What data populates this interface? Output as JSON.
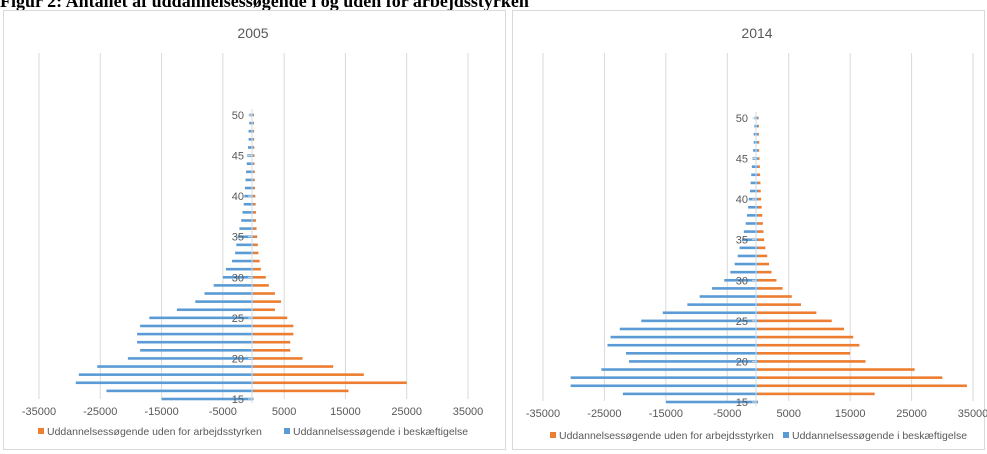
{
  "figure_title": "Figur 2: Antallet af uddannelsessøgende i og uden for arbejdsstyrken",
  "colors": {
    "in_work": "#5b9bd5",
    "out_of_work": "#ed7d31",
    "grid": "#d9d9d9",
    "text": "#595959"
  },
  "chart_data": [
    {
      "type": "bar",
      "orientation": "horizontal",
      "title": "2005",
      "y_ticks": [
        15,
        20,
        25,
        30,
        35,
        40,
        45,
        50
      ],
      "x_ticks": [
        -35000,
        -25000,
        -15000,
        -5000,
        5000,
        15000,
        25000,
        35000
      ],
      "xlim": [
        -35000,
        35000
      ],
      "grid": true,
      "legend_position": "bottom",
      "ages": [
        15,
        16,
        17,
        18,
        19,
        20,
        21,
        22,
        23,
        24,
        25,
        26,
        27,
        28,
        29,
        30,
        31,
        32,
        33,
        34,
        35,
        36,
        37,
        38,
        39,
        40,
        41,
        42,
        43,
        44,
        45,
        46,
        47,
        48,
        49,
        50
      ],
      "series": [
        {
          "name": "Uddannelsessøgende uden for arbejdsstyrken",
          "color": "#ed7d31",
          "values": [
            0,
            15500,
            25000,
            18000,
            13000,
            8000,
            6000,
            6000,
            6500,
            6500,
            5500,
            3500,
            4500,
            3500,
            2500,
            2000,
            1200,
            1000,
            800,
            700,
            600,
            500,
            400,
            400,
            350,
            300,
            250,
            200,
            200,
            150,
            150,
            120,
            100,
            100,
            80,
            80
          ]
        },
        {
          "name": "Uddannelsessøgende i beskæftigelse",
          "color": "#5b9bd5",
          "values": [
            -15000,
            -24000,
            -29000,
            -28500,
            -25500,
            -20500,
            -18500,
            -19000,
            -19000,
            -18500,
            -17000,
            -12500,
            -9500,
            -8000,
            -6500,
            -5000,
            -4500,
            -3500,
            -3000,
            -2800,
            -2600,
            -2300,
            -2000,
            -1800,
            -1600,
            -1500,
            -1400,
            -1300,
            -1200,
            -1100,
            -1000,
            -900,
            -800,
            -800,
            -700,
            -700
          ]
        }
      ]
    },
    {
      "type": "bar",
      "orientation": "horizontal",
      "title": "2014",
      "y_ticks": [
        15,
        20,
        25,
        30,
        35,
        40,
        45,
        50
      ],
      "x_ticks": [
        -35000,
        -25000,
        -15000,
        -5000,
        5000,
        15000,
        25000,
        35000
      ],
      "xlim": [
        -35000,
        35000
      ],
      "grid": true,
      "legend_position": "bottom",
      "ages": [
        15,
        16,
        17,
        18,
        19,
        20,
        21,
        22,
        23,
        24,
        25,
        26,
        27,
        28,
        29,
        30,
        31,
        32,
        33,
        34,
        35,
        36,
        37,
        38,
        39,
        40,
        41,
        42,
        43,
        44,
        45,
        46,
        47,
        48,
        49,
        50
      ],
      "series": [
        {
          "name": "Uddannelsessøgende uden for arbejdsstyrken",
          "color": "#ed7d31",
          "values": [
            0,
            19000,
            34000,
            30000,
            25500,
            17500,
            15000,
            16500,
            15500,
            14000,
            12000,
            9500,
            7000,
            5500,
            4000,
            3000,
            2200,
            1800,
            1500,
            1200,
            1000,
            900,
            800,
            700,
            600,
            500,
            450,
            400,
            350,
            300,
            250,
            200,
            200,
            150,
            150,
            120
          ]
        },
        {
          "name": "Uddannelsessøgende i beskæftigelse",
          "color": "#5b9bd5",
          "values": [
            -15000,
            -22000,
            -30500,
            -30500,
            -25500,
            -21000,
            -21500,
            -24500,
            -24000,
            -22500,
            -19000,
            -15500,
            -11500,
            -9500,
            -7500,
            -5500,
            -4500,
            -3800,
            -3300,
            -3000,
            -2600,
            -2300,
            -2000,
            -1800,
            -1600,
            -1500,
            -1300,
            -1200,
            -1100,
            -1000,
            -900,
            -800,
            -700,
            -700,
            -600,
            -600
          ]
        }
      ]
    }
  ]
}
